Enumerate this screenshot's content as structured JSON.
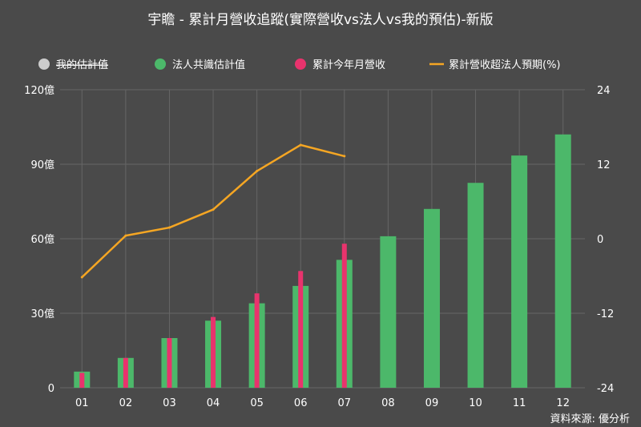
{
  "title": "宇瞻 - 累計月營收追蹤(實際營收vs法人vs我的預估)-新版",
  "source": "資料來源: 優分析",
  "legend": [
    {
      "label": "我的估計值",
      "color": "#cccccc",
      "marker": "circle",
      "strikethrough": true
    },
    {
      "label": "法人共識估計值",
      "color": "#4cb86a",
      "marker": "circle"
    },
    {
      "label": "累計今年月營收",
      "color": "#e8336d",
      "marker": "circle"
    },
    {
      "label": "累計營收超法人預期(%)",
      "color": "#f5a623",
      "marker": "line"
    }
  ],
  "chart_data": {
    "type": "bar",
    "categories": [
      "01",
      "02",
      "03",
      "04",
      "05",
      "06",
      "07",
      "08",
      "09",
      "10",
      "11",
      "12"
    ],
    "y_left": {
      "ticks": [
        "0",
        "30億",
        "60億",
        "90億",
        "120億"
      ],
      "tick_values": [
        0,
        30,
        60,
        90,
        120
      ],
      "range": [
        0,
        120
      ]
    },
    "y_right": {
      "ticks": [
        "-24",
        "-12",
        "0",
        "12",
        "24"
      ],
      "tick_values": [
        -24,
        -12,
        0,
        12,
        24
      ],
      "range": [
        -24,
        24
      ]
    },
    "grid": true,
    "series": [
      {
        "name": "法人共識估計值",
        "kind": "bar",
        "axis": "left",
        "color": "#4cb86a",
        "values": [
          6.5,
          12,
          20,
          27,
          34,
          41,
          51.5,
          61,
          72,
          82.5,
          93.5,
          102
        ]
      },
      {
        "name": "累計今年月營收",
        "kind": "bar",
        "axis": "left",
        "color": "#e8336d",
        "values": [
          6,
          12,
          20,
          28.5,
          38,
          47,
          58,
          null,
          null,
          null,
          null,
          null
        ]
      },
      {
        "name": "累計營收超法人預期(%)",
        "kind": "line",
        "axis": "right",
        "color": "#f5a623",
        "values": [
          -6.2,
          0.5,
          1.8,
          4.7,
          10.9,
          15.1,
          13.3,
          null,
          null,
          null,
          null,
          null
        ]
      }
    ]
  }
}
